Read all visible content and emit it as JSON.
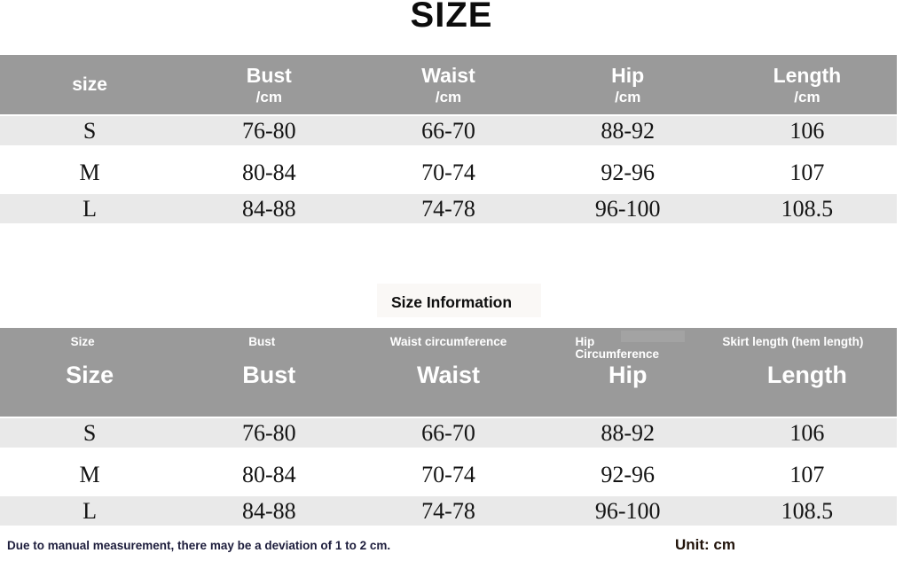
{
  "page": {
    "title": "SIZE",
    "section2_title": "Size Information",
    "deviation_note": "Due to manual measurement, there may be a deviation of 1 to 2 cm.",
    "unit_label": "Unit: cm"
  },
  "colors": {
    "header_gray": "#9a9a9a",
    "row_stripe_gray": "#e9e9e9",
    "header_text": "#ffffff",
    "data_text": "#141414",
    "deviation_note_text": "#1d1d3c",
    "unit_text": "#21130a"
  },
  "size_table": {
    "columns": [
      {
        "label": "size",
        "sub": ""
      },
      {
        "label": "Bust",
        "sub": "/cm"
      },
      {
        "label": "Waist",
        "sub": "/cm"
      },
      {
        "label": "Hip",
        "sub": "/cm"
      },
      {
        "label": "Length",
        "sub": "/cm"
      }
    ],
    "rows": [
      [
        "S",
        "76-80",
        "66-70",
        "88-92",
        "106"
      ],
      [
        "M",
        "80-84",
        "70-74",
        "92-96",
        "107"
      ],
      [
        "L",
        "84-88",
        "74-78",
        "96-100",
        "108.5"
      ]
    ]
  },
  "size_information_table": {
    "columns": [
      {
        "small": "Size",
        "big": "Size"
      },
      {
        "small": "Bust",
        "big": "Bust"
      },
      {
        "small": "Waist circumference",
        "big": "Waist"
      },
      {
        "small": "Hip\nCircumference",
        "big": "Hip"
      },
      {
        "small": "Skirt length (hem length)",
        "big": "Length"
      }
    ],
    "rows": [
      [
        "S",
        "76-80",
        "66-70",
        "88-92",
        "106"
      ],
      [
        "M",
        "80-84",
        "70-74",
        "92-96",
        "107"
      ],
      [
        "L",
        "84-88",
        "74-78",
        "96-100",
        "108.5"
      ]
    ]
  }
}
